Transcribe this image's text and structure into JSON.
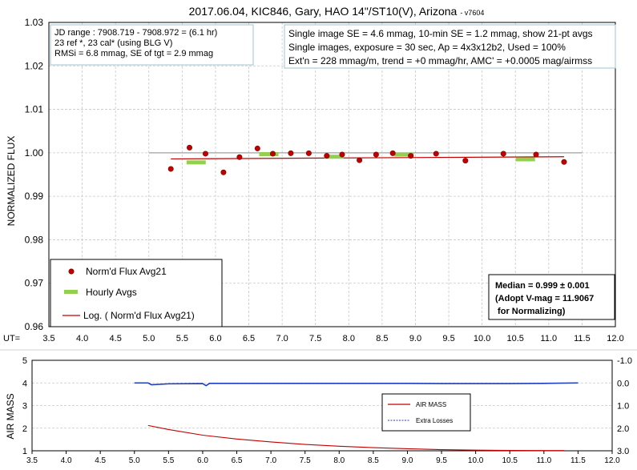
{
  "chart_data": [
    {
      "type": "scatter",
      "title": "2017.06.04, KIC846, Gary, HAO 14\"/ST10(V), Arizona",
      "title_version": "- v7604",
      "ylabel": "NORMALIZED FLUX",
      "x_prefix": "UT=",
      "xlim": [
        3.5,
        12.0
      ],
      "ylim": [
        0.96,
        1.03
      ],
      "xticks": [
        "3.5",
        "4.0",
        "4.5",
        "5.0",
        "5.5",
        "6.0",
        "6.5",
        "7.0",
        "7.5",
        "8.0",
        "8.5",
        "9.0",
        "9.5",
        "10.0",
        "10.5",
        "11.0",
        "11.5",
        "12.0"
      ],
      "yticks": [
        "0.96",
        "0.97",
        "0.98",
        "0.99",
        "1.00",
        "1.01",
        "1.02",
        "1.03"
      ],
      "reference_line": {
        "y": 1.0,
        "x": [
          5.0,
          11.5
        ]
      },
      "info_box_left": [
        "JD range : 7908.719  - 7908.972  = (6.1 hr)",
        "23 ref *, 23 cal* (using BLG V)",
        "RMSi = 6.8 mmag, SE of tgt = 2.9 mmag"
      ],
      "info_box_right": [
        "Single image SE = 4.6 mmag, 10-min SE = 1.2 mmag, show 21-pt avgs",
        "Single images, exposure = 30 sec, Ap = 4x3x12b2, Used = 100%",
        "Ext'n = 228 mmag/m, trend = +0 mmag/hr, AMC' = +0.0005 mag/airmss"
      ],
      "median_box": [
        "Median = 0.999 ± 0.001",
        "(Adopt V-mag = 11.9067",
        " for Normalizing)"
      ],
      "legend": {
        "placement": "bottom-left",
        "entries": [
          "Norm'd Flux Avg21",
          "Hourly Avgs",
          "Log. ( Norm'd Flux Avg21)"
        ]
      },
      "series": [
        {
          "name": "Norm'd Flux Avg21",
          "color": "#c00000",
          "x": [
            5.33,
            5.61,
            5.85,
            6.12,
            6.36,
            6.63,
            6.86,
            7.13,
            7.4,
            7.67,
            7.9,
            8.16,
            8.41,
            8.66,
            8.93,
            9.31,
            9.75,
            10.32,
            10.81,
            11.23
          ],
          "y": [
            0.9963,
            1.0012,
            0.9998,
            0.9955,
            0.999,
            1.001,
            0.9998,
            0.9999,
            0.9999,
            0.9993,
            0.9996,
            0.9983,
            0.9996,
            0.9999,
            0.9993,
            0.9998,
            0.9982,
            0.9998,
            0.9996,
            0.9979
          ]
        },
        {
          "name": "Hourly Avgs",
          "color": "#92d050",
          "x": [
            5.71,
            6.8,
            7.78,
            8.83,
            10.65
          ],
          "y": [
            0.9978,
            0.9997,
            0.9991,
            0.9996,
            0.9985
          ]
        },
        {
          "name": "Log. ( Norm'd Flux Avg21)",
          "color": "#c00000",
          "x": [
            5.33,
            11.23
          ],
          "y": [
            0.9986,
            0.9991
          ]
        }
      ]
    },
    {
      "type": "line",
      "ylabel": "AIR MASS",
      "xlim": [
        3.5,
        12.0
      ],
      "ylim": [
        1,
        5
      ],
      "ylim_right": [
        3.0,
        -1.0
      ],
      "xticks": [
        "3.5",
        "4.0",
        "4.5",
        "5.0",
        "5.5",
        "6.0",
        "6.5",
        "7.0",
        "7.5",
        "8.0",
        "8.5",
        "9.0",
        "9.5",
        "10.0",
        "10.5",
        "11.0",
        "11.5",
        "12.0"
      ],
      "yticks": [
        "1",
        "2",
        "3",
        "4",
        "5"
      ],
      "yticks_right": [
        "3.0",
        "2.0",
        "1.0",
        "0.0",
        "-1.0"
      ],
      "legend": {
        "placement": "center-right",
        "entries": [
          "AIR MASS",
          "Extra Losses"
        ]
      },
      "series": [
        {
          "name": "AIR MASS",
          "color": "#c00000",
          "x": [
            5.2,
            5.5,
            6.0,
            6.5,
            7.0,
            7.5,
            8.0,
            8.5,
            9.0,
            9.5,
            10.0,
            10.5,
            11.0,
            11.3
          ],
          "y": [
            2.12,
            1.94,
            1.69,
            1.52,
            1.39,
            1.28,
            1.2,
            1.14,
            1.09,
            1.05,
            1.03,
            1.015,
            1.01,
            1.01
          ]
        },
        {
          "name": "Extra Losses",
          "color": "#1f3fbf",
          "x": [
            5.0,
            5.2,
            5.25,
            5.5,
            6.0,
            6.05,
            6.1,
            6.5,
            7.0,
            7.5,
            8.0,
            8.5,
            9.0,
            9.5,
            10.0,
            10.5,
            11.0,
            11.5
          ],
          "y": [
            0.0,
            0.0,
            0.08,
            0.04,
            0.03,
            0.12,
            0.02,
            0.02,
            0.02,
            0.02,
            0.02,
            0.02,
            0.02,
            0.03,
            0.03,
            0.03,
            0.02,
            0.0
          ]
        }
      ]
    }
  ]
}
